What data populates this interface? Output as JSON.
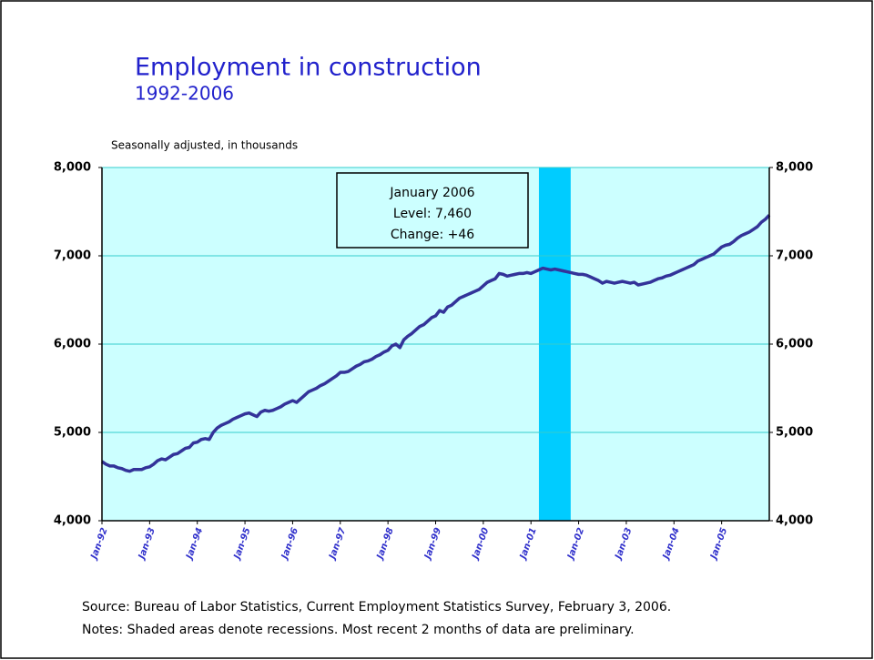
{
  "chart_data": {
    "type": "line",
    "title": "Employment in construction",
    "subtitle": "1992-2006",
    "y_axis_label": "Seasonally adjusted, in thousands",
    "categories": [
      "Jan-92",
      null,
      null,
      null,
      null,
      null,
      null,
      null,
      null,
      null,
      null,
      null,
      "Jan-93",
      null,
      null,
      null,
      null,
      null,
      null,
      null,
      null,
      null,
      null,
      null,
      "Jan-94",
      null,
      null,
      null,
      null,
      null,
      null,
      null,
      null,
      null,
      null,
      null,
      "Jan-95",
      null,
      null,
      null,
      null,
      null,
      null,
      null,
      null,
      null,
      null,
      null,
      "Jan-96",
      null,
      null,
      null,
      null,
      null,
      null,
      null,
      null,
      null,
      null,
      null,
      "Jan-97",
      null,
      null,
      null,
      null,
      null,
      null,
      null,
      null,
      null,
      null,
      null,
      "Jan-98",
      null,
      null,
      null,
      null,
      null,
      null,
      null,
      null,
      null,
      null,
      null,
      "Jan-99",
      null,
      null,
      null,
      null,
      null,
      null,
      null,
      null,
      null,
      null,
      null,
      "Jan-00",
      null,
      null,
      null,
      null,
      null,
      null,
      null,
      null,
      null,
      null,
      null,
      "Jan-01",
      null,
      null,
      null,
      null,
      null,
      null,
      null,
      null,
      null,
      null,
      null,
      "Jan-02",
      null,
      null,
      null,
      null,
      null,
      null,
      null,
      null,
      null,
      null,
      null,
      "Jan-03",
      null,
      null,
      null,
      null,
      null,
      null,
      null,
      null,
      null,
      null,
      null,
      "Jan-04",
      null,
      null,
      null,
      null,
      null,
      null,
      null,
      null,
      null,
      null,
      null,
      "Jan-05",
      null,
      null,
      null,
      null,
      null,
      null,
      null,
      null,
      null,
      null,
      null,
      null
    ],
    "series": [
      {
        "name": "Employment in construction",
        "color": "#333399",
        "values": [
          4670,
          4640,
          4620,
          4620,
          4600,
          4590,
          4570,
          4560,
          4580,
          4580,
          4580,
          4600,
          4610,
          4640,
          4680,
          4700,
          4690,
          4720,
          4750,
          4760,
          4790,
          4820,
          4830,
          4880,
          4890,
          4920,
          4930,
          4920,
          5000,
          5050,
          5080,
          5100,
          5120,
          5150,
          5170,
          5190,
          5210,
          5220,
          5200,
          5180,
          5230,
          5250,
          5240,
          5250,
          5270,
          5290,
          5320,
          5340,
          5360,
          5340,
          5380,
          5420,
          5460,
          5480,
          5500,
          5530,
          5550,
          5580,
          5610,
          5640,
          5680,
          5680,
          5690,
          5720,
          5750,
          5770,
          5800,
          5810,
          5830,
          5860,
          5880,
          5910,
          5930,
          5980,
          6000,
          5960,
          6050,
          6090,
          6120,
          6160,
          6200,
          6220,
          6260,
          6300,
          6320,
          6380,
          6360,
          6420,
          6440,
          6480,
          6520,
          6540,
          6560,
          6580,
          6600,
          6620,
          6660,
          6700,
          6720,
          6740,
          6800,
          6790,
          6770,
          6780,
          6790,
          6800,
          6800,
          6810,
          6800,
          6820,
          6840,
          6860,
          6850,
          6840,
          6850,
          6840,
          6830,
          6820,
          6810,
          6800,
          6790,
          6790,
          6780,
          6760,
          6740,
          6720,
          6690,
          6710,
          6700,
          6690,
          6700,
          6710,
          6700,
          6690,
          6700,
          6670,
          6680,
          6690,
          6700,
          6720,
          6740,
          6750,
          6770,
          6780,
          6800,
          6820,
          6840,
          6860,
          6880,
          6900,
          6940,
          6960,
          6980,
          7000,
          7020,
          7060,
          7100,
          7120,
          7130,
          7160,
          7200,
          7230,
          7250,
          7270,
          7300,
          7330,
          7380,
          7414,
          7460
        ]
      }
    ],
    "ylim": [
      4000,
      8000
    ],
    "yticks": [
      {
        "value": 4000,
        "label": "4,000"
      },
      {
        "value": 5000,
        "label": "5,000"
      },
      {
        "value": 6000,
        "label": "6,000"
      },
      {
        "value": 7000,
        "label": "7,000"
      },
      {
        "value": 8000,
        "label": "8,000"
      }
    ],
    "y2lim": [
      4000,
      8000
    ],
    "y2ticks": [
      {
        "value": 4000,
        "label": "4,000"
      },
      {
        "value": 5000,
        "label": "5,000"
      },
      {
        "value": 6000,
        "label": "6,000"
      },
      {
        "value": 7000,
        "label": "7,000"
      },
      {
        "value": 8000,
        "label": "8,000"
      }
    ],
    "grid": true,
    "shaded_color": "#00ccff",
    "shaded": [
      110,
      118
    ],
    "annotation": [
      "January 2006",
      "Level: 7,460",
      "Change: +46"
    ],
    "source": "Source:  Bureau of Labor Statistics, Current Employment Statistics Survey, February 3, 2006.",
    "notes": "Notes:  Shaded areas denote recessions.  Most recent 2 months of data are preliminary."
  }
}
